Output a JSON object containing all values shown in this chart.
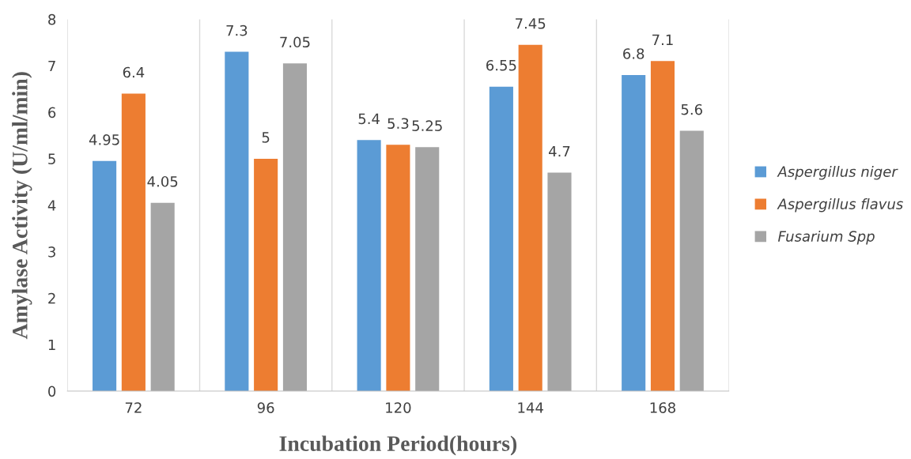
{
  "chart_data": {
    "type": "bar",
    "xlabel": "Incubation Period(hours)",
    "ylabel": "Amylase Activity (U/ml/min)",
    "categories": [
      "72",
      "96",
      "120",
      "144",
      "168"
    ],
    "series": [
      {
        "name": "Aspergillus niger",
        "color": "#5b9bd5",
        "values": [
          4.95,
          7.3,
          5.4,
          6.55,
          6.8
        ]
      },
      {
        "name": "Aspergillus flavus",
        "color": "#ed7d31",
        "values": [
          6.4,
          5,
          5.3,
          7.45,
          7.1
        ]
      },
      {
        "name": "Fusarium Spp",
        "color": "#a5a5a5",
        "values": [
          4.05,
          7.05,
          5.25,
          4.7,
          5.6
        ]
      }
    ],
    "ylim": [
      0,
      8
    ],
    "yticks": [
      0,
      1,
      2,
      3,
      4,
      5,
      6,
      7,
      8
    ],
    "grid": "x",
    "legend": "right",
    "data_labels": true
  }
}
